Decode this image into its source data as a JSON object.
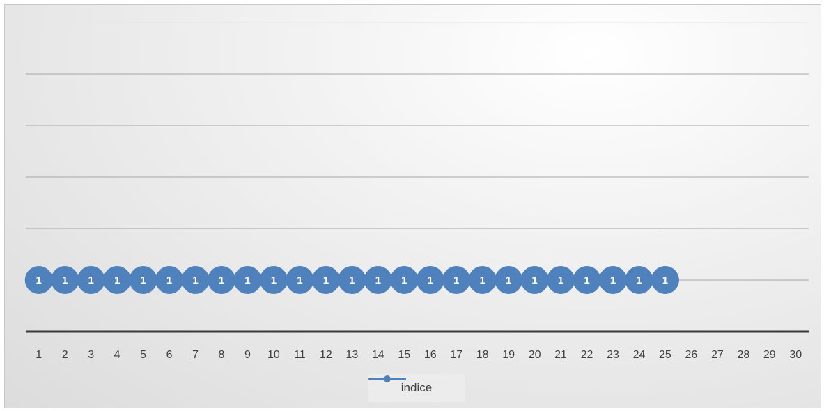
{
  "chart_data": {
    "type": "line",
    "categories": [
      "1",
      "2",
      "3",
      "4",
      "5",
      "6",
      "7",
      "8",
      "9",
      "10",
      "11",
      "12",
      "13",
      "14",
      "15",
      "16",
      "17",
      "18",
      "19",
      "20",
      "21",
      "22",
      "23",
      "24",
      "25",
      "26",
      "27",
      "28",
      "29",
      "30"
    ],
    "series": [
      {
        "name": "indice",
        "values": [
          1,
          1,
          1,
          1,
          1,
          1,
          1,
          1,
          1,
          1,
          1,
          1,
          1,
          1,
          1,
          1,
          1,
          1,
          1,
          1,
          1,
          1,
          1,
          1,
          1,
          null,
          null,
          null,
          null,
          null
        ],
        "color": "#4f81bd",
        "data_labels": true
      }
    ],
    "title": "",
    "xlabel": "",
    "ylabel": "",
    "ylim": [
      0,
      6
    ],
    "y_tick_labels_shown": false,
    "grid": true,
    "legend": "bottom"
  }
}
